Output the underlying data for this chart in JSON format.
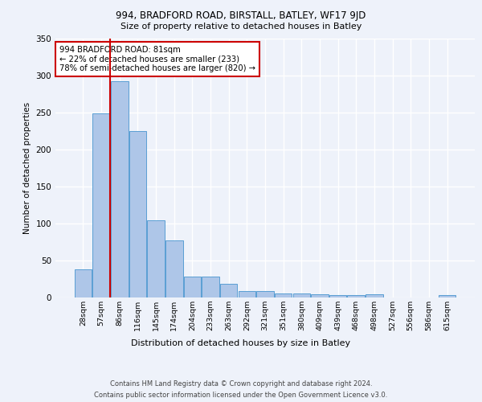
{
  "title_line1": "994, BRADFORD ROAD, BIRSTALL, BATLEY, WF17 9JD",
  "title_line2": "Size of property relative to detached houses in Batley",
  "xlabel": "Distribution of detached houses by size in Batley",
  "ylabel": "Number of detached properties",
  "categories": [
    "28sqm",
    "57sqm",
    "86sqm",
    "116sqm",
    "145sqm",
    "174sqm",
    "204sqm",
    "233sqm",
    "263sqm",
    "292sqm",
    "321sqm",
    "351sqm",
    "380sqm",
    "409sqm",
    "439sqm",
    "468sqm",
    "498sqm",
    "527sqm",
    "556sqm",
    "586sqm",
    "615sqm"
  ],
  "values": [
    38,
    249,
    292,
    225,
    104,
    77,
    28,
    28,
    18,
    9,
    9,
    5,
    5,
    4,
    3,
    3,
    4,
    0,
    0,
    0,
    3
  ],
  "bar_color": "#aec6e8",
  "bar_edge_color": "#5a9fd4",
  "annotation_text": "994 BRADFORD ROAD: 81sqm\n← 22% of detached houses are smaller (233)\n78% of semi-detached houses are larger (820) →",
  "footer_line1": "Contains HM Land Registry data © Crown copyright and database right 2024.",
  "footer_line2": "Contains public sector information licensed under the Open Government Licence v3.0.",
  "bg_color": "#eef2fa",
  "plot_bg_color": "#eef2fa",
  "grid_color": "#ffffff",
  "annotation_box_color": "#ffffff",
  "annotation_box_edge": "#cc0000",
  "vline_color": "#cc0000",
  "ylim": [
    0,
    350
  ],
  "vline_x": 1.5
}
